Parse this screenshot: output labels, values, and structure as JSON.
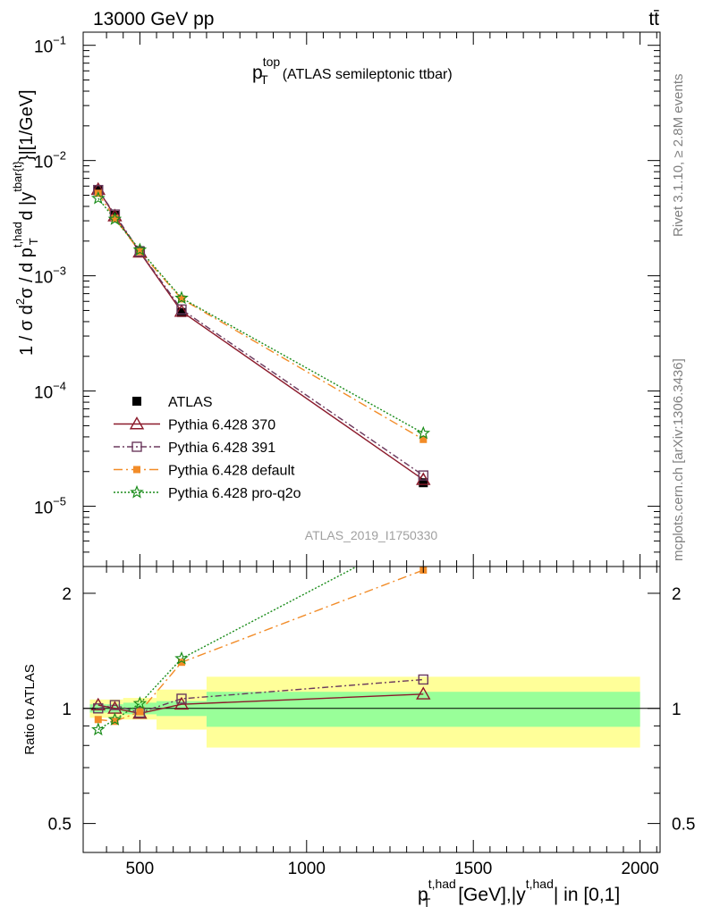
{
  "header": {
    "left": "13000 GeV pp",
    "right": "tt̄"
  },
  "side_labels": {
    "rivet": "Rivet 3.1.10, ≥ 2.8M events",
    "mcplots": "mcplots.cern.ch [arXiv:1306.3436]"
  },
  "chart_data": [
    {
      "type": "line",
      "panel": "main",
      "title": "p_T^top (ATLAS semileptonic ttbar)",
      "title_parts": {
        "p": "p",
        "sup": "top",
        "sub": "T",
        "rest": "(ATLAS semileptonic ttbar)"
      },
      "ylabel": "1 / σ d²σ / d p_T^{t,had} d |y^{tbar{t}}|[1/GeV]",
      "ylabel_parts": {
        "a": "1 / σ d",
        "b": "2",
        "c": "σ / d p",
        "d": "t,had",
        "e": "T",
        "f": " d |y",
        "g": "tbar{t}",
        "h": "}|[1/GeV]"
      },
      "yscale": "log",
      "ylim": [
        3e-06,
        0.13
      ],
      "xlim": [
        330,
        2060
      ],
      "ytick_labels": [
        {
          "value": 1e-05,
          "base": "10",
          "exp": "−5"
        },
        {
          "value": 0.0001,
          "base": "10",
          "exp": "−4"
        },
        {
          "value": 0.001,
          "base": "10",
          "exp": "−3"
        },
        {
          "value": 0.01,
          "base": "10",
          "exp": "−2"
        },
        {
          "value": 0.1,
          "base": "10",
          "exp": "−1"
        }
      ],
      "watermark": "ATLAS_2019_I1750330",
      "x": [
        375,
        425,
        500,
        625,
        1350
      ],
      "series": [
        {
          "name": "ATLAS",
          "color": "#000000",
          "marker": "filled-square",
          "line": "none",
          "values": [
            0.0055,
            0.00335,
            0.00165,
            0.00048,
            1.6e-05
          ]
        },
        {
          "name": "Pythia 6.428 370",
          "color": "#8b1a2b",
          "marker": "open-triangle",
          "line": "solid",
          "values": [
            0.0056,
            0.0033,
            0.0016,
            0.00049,
            1.7e-05
          ]
        },
        {
          "name": "Pythia 6.428 391",
          "color": "#6b3a5e",
          "marker": "open-square",
          "line": "dashdot",
          "values": [
            0.00555,
            0.0034,
            0.00162,
            0.00051,
            1.85e-05
          ]
        },
        {
          "name": "Pythia 6.428 default",
          "color": "#f28c28",
          "marker": "filled-square-small",
          "line": "dashdot-long",
          "values": [
            0.0052,
            0.00315,
            0.00162,
            0.00063,
            3.8e-05
          ]
        },
        {
          "name": "Pythia 6.428 pro-q2o",
          "color": "#1a8c1a",
          "marker": "star",
          "line": "dotted",
          "values": [
            0.0047,
            0.0031,
            0.00168,
            0.00064,
            4.3e-05
          ]
        }
      ]
    },
    {
      "type": "line",
      "panel": "ratio",
      "ylabel": "Ratio to ATLAS",
      "xlabel": "p_T^{t,had} [GeV],|y^{t,had}| in [0,1]",
      "xlabel_parts": {
        "a": "p",
        "b": "t,had",
        "c": "T",
        "d": " [GeV],|y",
        "e": "t,had",
        "f": "| in [0,1]"
      },
      "yscale": "log",
      "ylim": [
        0.42,
        2.35
      ],
      "xlim": [
        330,
        2060
      ],
      "xtick_labels": [
        {
          "value": 500,
          "label": "500"
        },
        {
          "value": 1000,
          "label": "1000"
        },
        {
          "value": 1500,
          "label": "1500"
        },
        {
          "value": 2000,
          "label": "2000"
        }
      ],
      "ytick_labels": [
        {
          "value": 0.5,
          "label": "0.5"
        },
        {
          "value": 1,
          "label": "1"
        },
        {
          "value": 2,
          "label": "2"
        }
      ],
      "bands": {
        "bins": [
          350,
          400,
          450,
          550,
          700,
          2000
        ],
        "green_lo": [
          0.975,
          0.975,
          0.965,
          0.955,
          0.895
        ],
        "green_hi": [
          1.025,
          1.025,
          1.035,
          1.045,
          1.105
        ],
        "yellow_lo": [
          0.945,
          0.945,
          0.935,
          0.88,
          0.79
        ],
        "yellow_hi": [
          1.055,
          1.055,
          1.065,
          1.12,
          1.21
        ],
        "green_color": "#99ff99",
        "yellow_color": "#ffff99"
      },
      "x": [
        375,
        425,
        500,
        625,
        1350
      ],
      "series": [
        {
          "name": "Pythia 6.428 370",
          "values": [
            1.02,
            1.0,
            0.97,
            1.025,
            1.09
          ]
        },
        {
          "name": "Pythia 6.428 391",
          "values": [
            1.0,
            1.02,
            0.975,
            1.06,
            1.19
          ]
        },
        {
          "name": "Pythia 6.428 default",
          "values": [
            0.935,
            0.925,
            0.98,
            1.32,
            2.3
          ]
        },
        {
          "name": "Pythia 6.428 pro-q2o",
          "values": [
            0.88,
            0.935,
            1.03,
            1.35,
            2.9
          ]
        }
      ]
    }
  ]
}
